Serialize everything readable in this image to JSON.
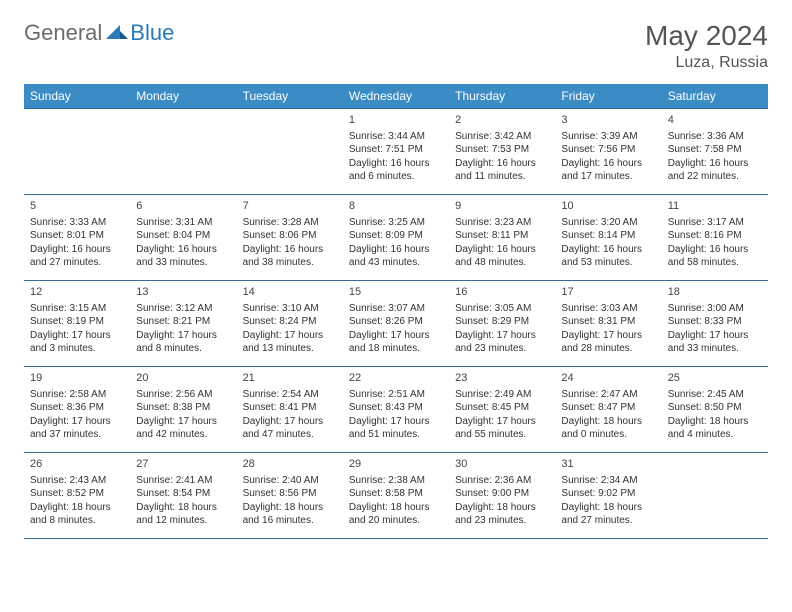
{
  "logo": {
    "text1": "General",
    "text2": "Blue"
  },
  "title": "May 2024",
  "location": "Luza, Russia",
  "colors": {
    "header_bg": "#3b8bc4",
    "header_text": "#ffffff",
    "border": "#3b6a94",
    "logo_gray": "#6b6b6b",
    "logo_blue": "#2a7ab8",
    "text": "#333333",
    "background": "#ffffff"
  },
  "weekdays": [
    "Sunday",
    "Monday",
    "Tuesday",
    "Wednesday",
    "Thursday",
    "Friday",
    "Saturday"
  ],
  "weeks": [
    [
      null,
      null,
      null,
      {
        "day": "1",
        "sunrise": "Sunrise: 3:44 AM",
        "sunset": "Sunset: 7:51 PM",
        "daylight": "Daylight: 16 hours and 6 minutes."
      },
      {
        "day": "2",
        "sunrise": "Sunrise: 3:42 AM",
        "sunset": "Sunset: 7:53 PM",
        "daylight": "Daylight: 16 hours and 11 minutes."
      },
      {
        "day": "3",
        "sunrise": "Sunrise: 3:39 AM",
        "sunset": "Sunset: 7:56 PM",
        "daylight": "Daylight: 16 hours and 17 minutes."
      },
      {
        "day": "4",
        "sunrise": "Sunrise: 3:36 AM",
        "sunset": "Sunset: 7:58 PM",
        "daylight": "Daylight: 16 hours and 22 minutes."
      }
    ],
    [
      {
        "day": "5",
        "sunrise": "Sunrise: 3:33 AM",
        "sunset": "Sunset: 8:01 PM",
        "daylight": "Daylight: 16 hours and 27 minutes."
      },
      {
        "day": "6",
        "sunrise": "Sunrise: 3:31 AM",
        "sunset": "Sunset: 8:04 PM",
        "daylight": "Daylight: 16 hours and 33 minutes."
      },
      {
        "day": "7",
        "sunrise": "Sunrise: 3:28 AM",
        "sunset": "Sunset: 8:06 PM",
        "daylight": "Daylight: 16 hours and 38 minutes."
      },
      {
        "day": "8",
        "sunrise": "Sunrise: 3:25 AM",
        "sunset": "Sunset: 8:09 PM",
        "daylight": "Daylight: 16 hours and 43 minutes."
      },
      {
        "day": "9",
        "sunrise": "Sunrise: 3:23 AM",
        "sunset": "Sunset: 8:11 PM",
        "daylight": "Daylight: 16 hours and 48 minutes."
      },
      {
        "day": "10",
        "sunrise": "Sunrise: 3:20 AM",
        "sunset": "Sunset: 8:14 PM",
        "daylight": "Daylight: 16 hours and 53 minutes."
      },
      {
        "day": "11",
        "sunrise": "Sunrise: 3:17 AM",
        "sunset": "Sunset: 8:16 PM",
        "daylight": "Daylight: 16 hours and 58 minutes."
      }
    ],
    [
      {
        "day": "12",
        "sunrise": "Sunrise: 3:15 AM",
        "sunset": "Sunset: 8:19 PM",
        "daylight": "Daylight: 17 hours and 3 minutes."
      },
      {
        "day": "13",
        "sunrise": "Sunrise: 3:12 AM",
        "sunset": "Sunset: 8:21 PM",
        "daylight": "Daylight: 17 hours and 8 minutes."
      },
      {
        "day": "14",
        "sunrise": "Sunrise: 3:10 AM",
        "sunset": "Sunset: 8:24 PM",
        "daylight": "Daylight: 17 hours and 13 minutes."
      },
      {
        "day": "15",
        "sunrise": "Sunrise: 3:07 AM",
        "sunset": "Sunset: 8:26 PM",
        "daylight": "Daylight: 17 hours and 18 minutes."
      },
      {
        "day": "16",
        "sunrise": "Sunrise: 3:05 AM",
        "sunset": "Sunset: 8:29 PM",
        "daylight": "Daylight: 17 hours and 23 minutes."
      },
      {
        "day": "17",
        "sunrise": "Sunrise: 3:03 AM",
        "sunset": "Sunset: 8:31 PM",
        "daylight": "Daylight: 17 hours and 28 minutes."
      },
      {
        "day": "18",
        "sunrise": "Sunrise: 3:00 AM",
        "sunset": "Sunset: 8:33 PM",
        "daylight": "Daylight: 17 hours and 33 minutes."
      }
    ],
    [
      {
        "day": "19",
        "sunrise": "Sunrise: 2:58 AM",
        "sunset": "Sunset: 8:36 PM",
        "daylight": "Daylight: 17 hours and 37 minutes."
      },
      {
        "day": "20",
        "sunrise": "Sunrise: 2:56 AM",
        "sunset": "Sunset: 8:38 PM",
        "daylight": "Daylight: 17 hours and 42 minutes."
      },
      {
        "day": "21",
        "sunrise": "Sunrise: 2:54 AM",
        "sunset": "Sunset: 8:41 PM",
        "daylight": "Daylight: 17 hours and 47 minutes."
      },
      {
        "day": "22",
        "sunrise": "Sunrise: 2:51 AM",
        "sunset": "Sunset: 8:43 PM",
        "daylight": "Daylight: 17 hours and 51 minutes."
      },
      {
        "day": "23",
        "sunrise": "Sunrise: 2:49 AM",
        "sunset": "Sunset: 8:45 PM",
        "daylight": "Daylight: 17 hours and 55 minutes."
      },
      {
        "day": "24",
        "sunrise": "Sunrise: 2:47 AM",
        "sunset": "Sunset: 8:47 PM",
        "daylight": "Daylight: 18 hours and 0 minutes."
      },
      {
        "day": "25",
        "sunrise": "Sunrise: 2:45 AM",
        "sunset": "Sunset: 8:50 PM",
        "daylight": "Daylight: 18 hours and 4 minutes."
      }
    ],
    [
      {
        "day": "26",
        "sunrise": "Sunrise: 2:43 AM",
        "sunset": "Sunset: 8:52 PM",
        "daylight": "Daylight: 18 hours and 8 minutes."
      },
      {
        "day": "27",
        "sunrise": "Sunrise: 2:41 AM",
        "sunset": "Sunset: 8:54 PM",
        "daylight": "Daylight: 18 hours and 12 minutes."
      },
      {
        "day": "28",
        "sunrise": "Sunrise: 2:40 AM",
        "sunset": "Sunset: 8:56 PM",
        "daylight": "Daylight: 18 hours and 16 minutes."
      },
      {
        "day": "29",
        "sunrise": "Sunrise: 2:38 AM",
        "sunset": "Sunset: 8:58 PM",
        "daylight": "Daylight: 18 hours and 20 minutes."
      },
      {
        "day": "30",
        "sunrise": "Sunrise: 2:36 AM",
        "sunset": "Sunset: 9:00 PM",
        "daylight": "Daylight: 18 hours and 23 minutes."
      },
      {
        "day": "31",
        "sunrise": "Sunrise: 2:34 AM",
        "sunset": "Sunset: 9:02 PM",
        "daylight": "Daylight: 18 hours and 27 minutes."
      },
      null
    ]
  ]
}
